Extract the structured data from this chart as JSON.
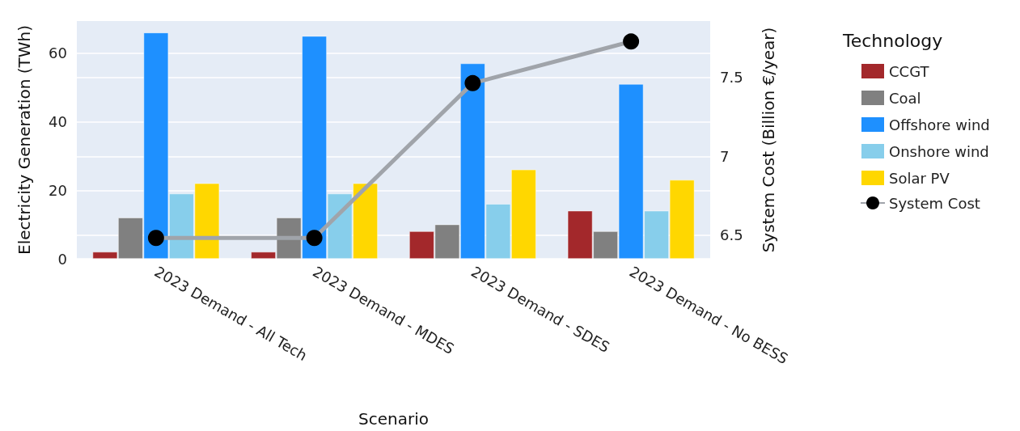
{
  "chart_data": {
    "type": "bar",
    "xlabel": "Scenario",
    "ylabel": "Electricity Generation (TWh)",
    "y2label": "System Cost (Billion €/year)",
    "legend_title": "Technology",
    "categories": [
      "2023 Demand - All Tech",
      "2023 Demand - MDES",
      "2023 Demand - SDES",
      "2023 Demand - No BESS"
    ],
    "series": [
      {
        "name": "CCGT",
        "color": "#a3282b",
        "values": [
          2,
          2,
          8,
          14
        ]
      },
      {
        "name": "Coal",
        "color": "#808080",
        "values": [
          12,
          12,
          10,
          8
        ]
      },
      {
        "name": "Offshore wind",
        "color": "#1e90ff",
        "values": [
          66,
          65,
          57,
          51
        ]
      },
      {
        "name": "Onshore wind",
        "color": "#87ceeb",
        "values": [
          19,
          19,
          16,
          14
        ]
      },
      {
        "name": "Solar PV",
        "color": "#ffd700",
        "values": [
          22,
          22,
          26,
          23
        ]
      },
      {
        "name": "System Cost",
        "type": "line",
        "axis": "y2",
        "color": "#a0a4aa",
        "marker": "circle",
        "values": [
          6.483,
          6.483,
          7.464,
          7.728
        ]
      }
    ],
    "ylim": [
      0,
      69.4
    ],
    "yticks": [
      0,
      20,
      40,
      60
    ],
    "y2lim": [
      6.351,
      7.858
    ],
    "y2ticks": [
      6.5,
      7,
      7.5
    ],
    "grid": true,
    "legend": "right"
  }
}
